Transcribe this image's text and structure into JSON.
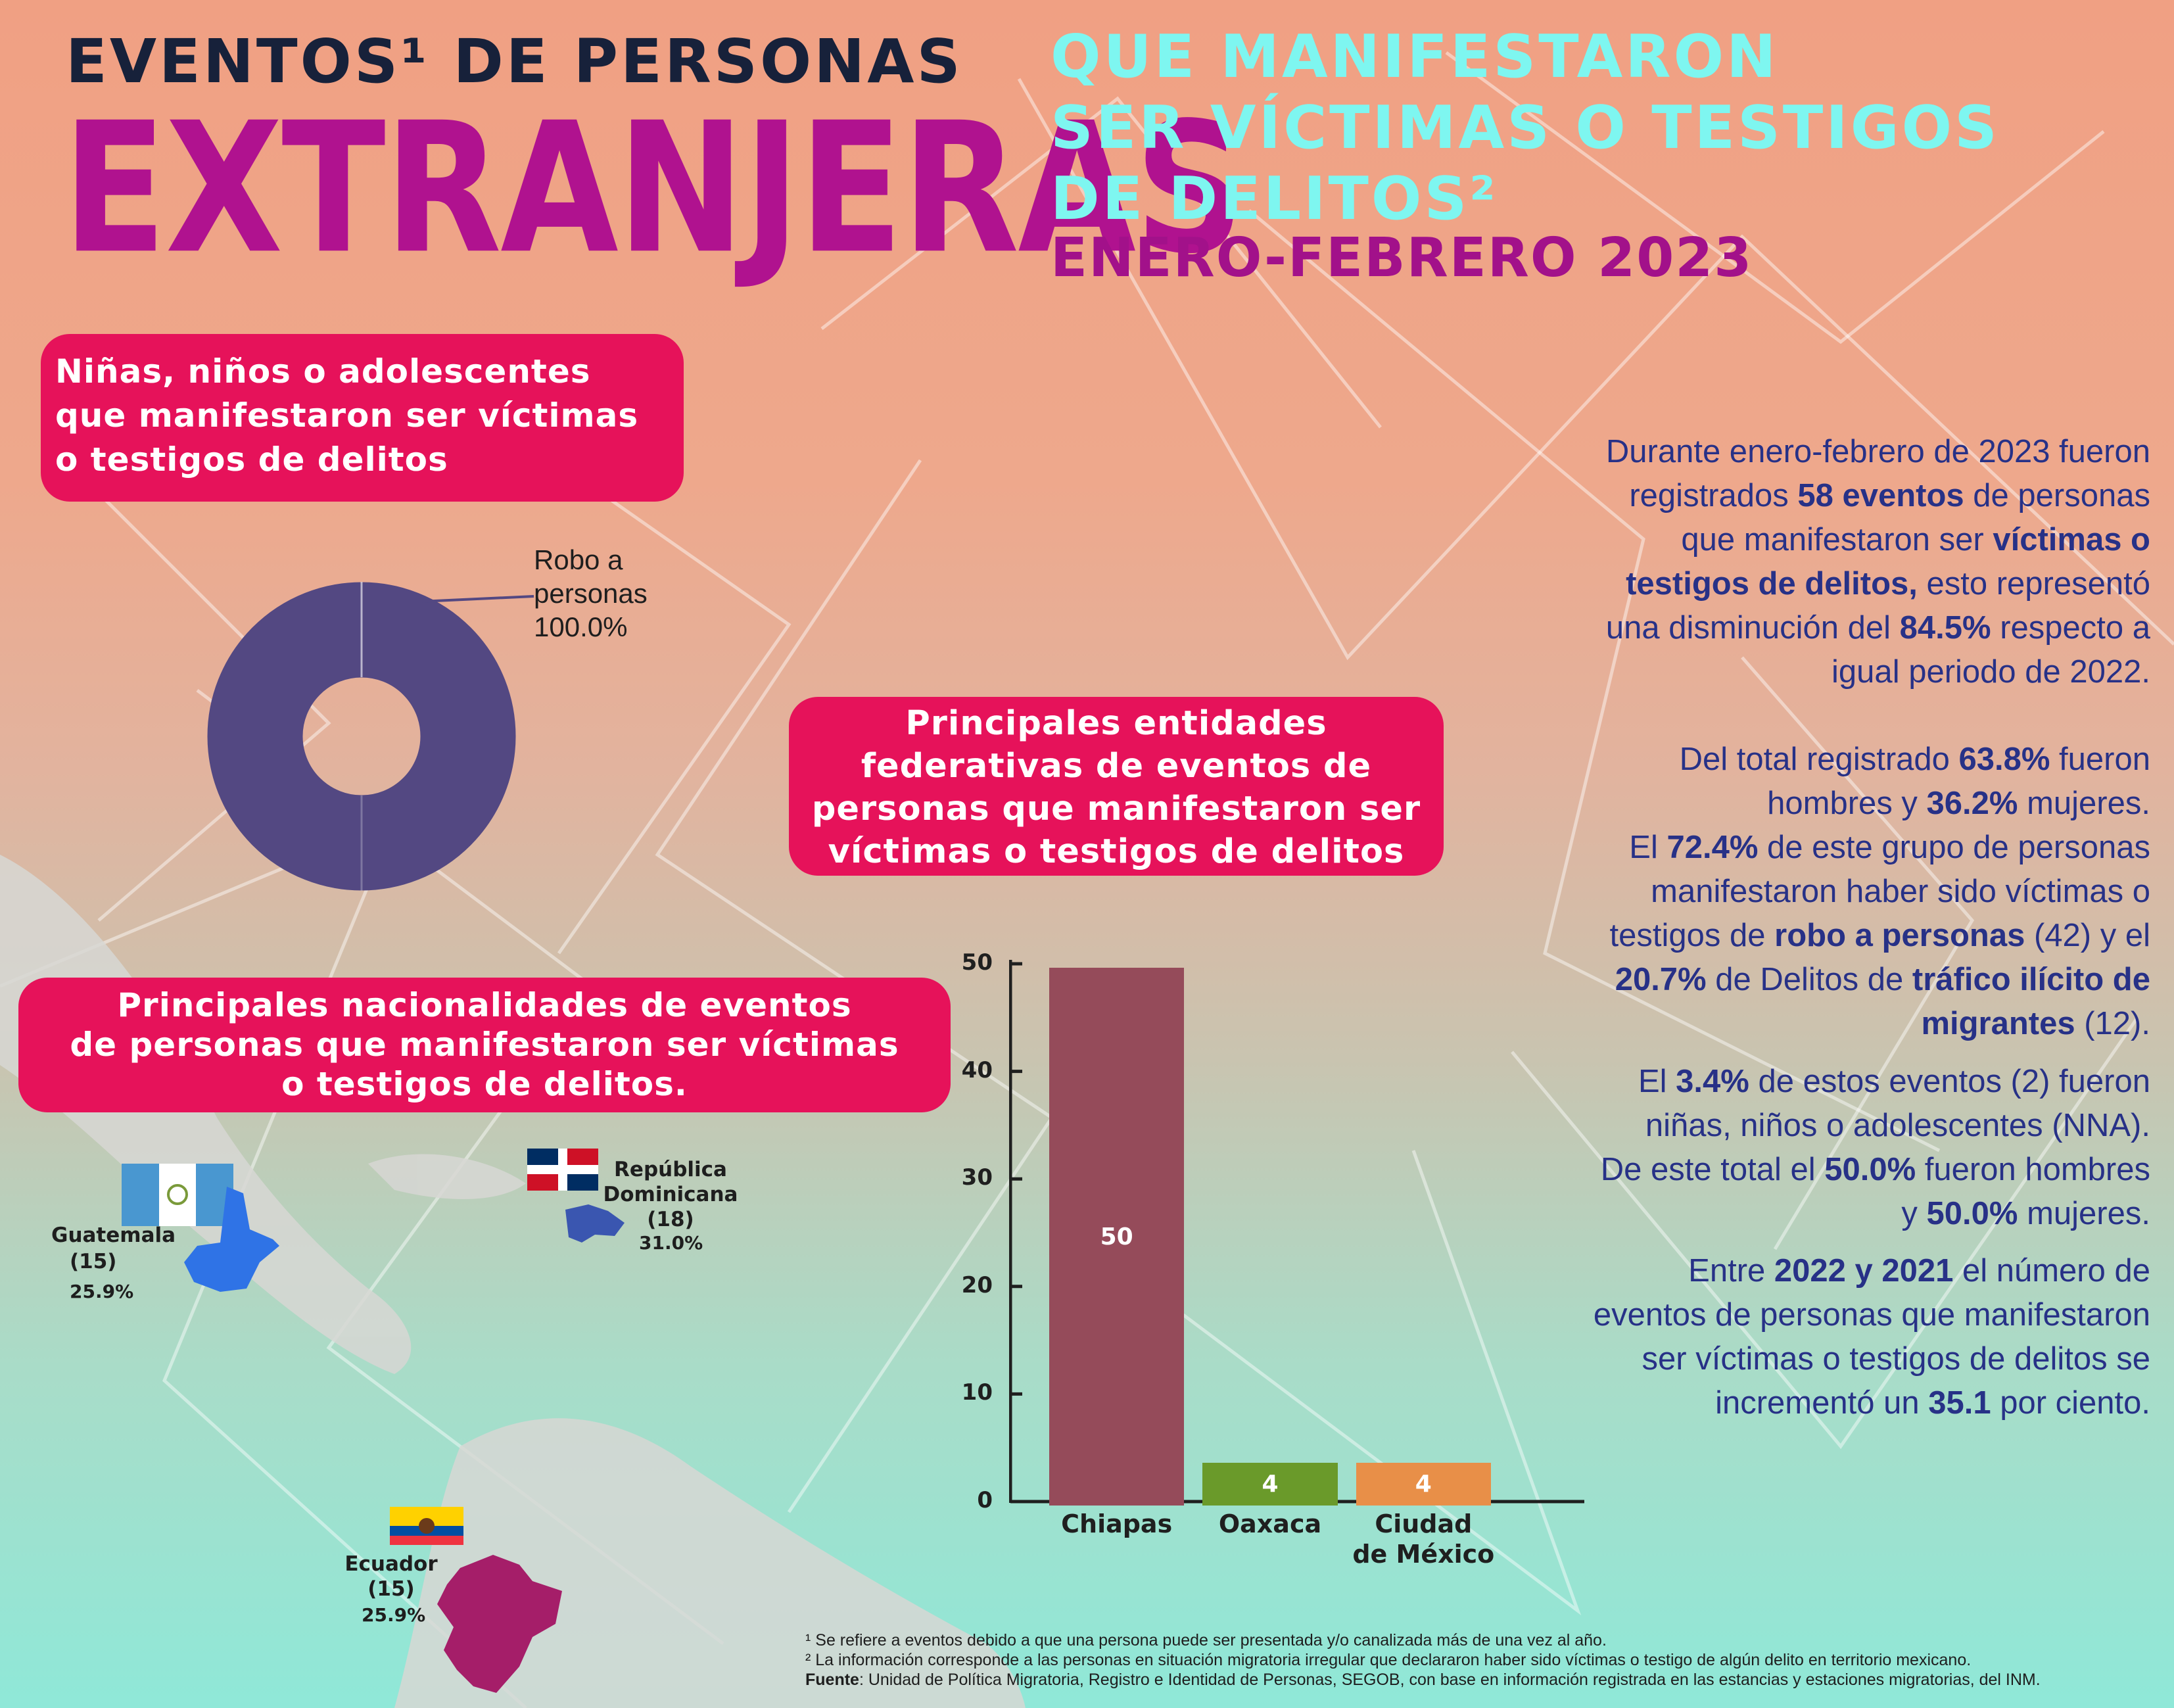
{
  "header": {
    "line1": "EVENTOS¹ DE PERSONAS",
    "big": "EXTRANJERAS",
    "sub": [
      "QUE MANIFESTARON",
      "SER VÍCTIMAS O TESTIGOS",
      "DE DELITOS²"
    ],
    "date": "ENERO-FEBRERO 2023"
  },
  "nna_box": {
    "lines": [
      "Niñas, niños o adolescentes",
      "que manifestaron ser víctimas",
      "o testigos de delitos"
    ]
  },
  "donut": {
    "label_lines": [
      "Robo a",
      "personas",
      "100.0%"
    ],
    "color": "#534882"
  },
  "states_box": {
    "lines": [
      "Principales entidades",
      "federativas de eventos de",
      "personas que manifestaron ser",
      "víctimas o testigos de delitos"
    ]
  },
  "nat_box": {
    "lines": [
      "Principales nacionalidades de eventos",
      "de personas que manifestaron ser víctimas",
      "o testigos de delitos."
    ]
  },
  "nationalities": [
    {
      "name": "Guatemala",
      "count": "(15)",
      "pct": "25.9%",
      "color": "#2f73e6"
    },
    {
      "name_lines": [
        "República",
        "Dominicana",
        "(18)"
      ],
      "pct": "31.0%",
      "color": "#3a56b0"
    },
    {
      "name_lines": [
        "Ecuador",
        "(15)"
      ],
      "pct": "25.9%",
      "color": "#a51e69"
    }
  ],
  "chart_data": {
    "type": "bar",
    "categories": [
      "Chiapas",
      "Oaxaca",
      "Ciudad de México"
    ],
    "category_lines": [
      [
        "Chiapas"
      ],
      [
        "Oaxaca"
      ],
      [
        "Ciudad",
        "de México"
      ]
    ],
    "values": [
      50,
      4,
      4
    ],
    "data_labels": [
      "50",
      "4",
      "4"
    ],
    "colors": [
      "#954b5a",
      "#6a9a2a",
      "#e88f48"
    ],
    "yticks": [
      "0",
      "10",
      "20",
      "30",
      "40",
      "50"
    ],
    "ylim": [
      0,
      50
    ],
    "grid": false
  },
  "summary": [
    [
      [
        "Durante enero-febrero de 2023  fueron",
        false
      ]
    ],
    [
      [
        "registrados ",
        false
      ],
      [
        "58 eventos",
        true
      ],
      [
        " de personas",
        false
      ]
    ],
    [
      [
        "que manifestaron ser ",
        false
      ],
      [
        "víctimas o",
        true
      ]
    ],
    [
      [
        "testigos de delitos,",
        true
      ],
      [
        " esto representó",
        false
      ]
    ],
    [
      [
        "una disminución  del ",
        false
      ],
      [
        "84.5%",
        true
      ],
      [
        " respecto a",
        false
      ]
    ],
    [
      [
        "igual periodo de 2022.",
        false
      ]
    ]
  ],
  "sex": [
    [
      [
        "Del total registrado ",
        false
      ],
      [
        "63.8%",
        true
      ],
      [
        " fueron",
        false
      ]
    ],
    [
      [
        "hombres y ",
        false
      ],
      [
        "36.2%",
        true
      ],
      [
        " mujeres.",
        false
      ]
    ],
    [
      [
        "El ",
        false
      ],
      [
        "72.4%",
        true
      ],
      [
        " de este grupo de personas",
        false
      ]
    ],
    [
      [
        "manifestaron haber sido víctimas o",
        false
      ]
    ],
    [
      [
        "testigos de ",
        false
      ],
      [
        "robo a personas",
        true
      ],
      [
        " (42) y el",
        false
      ]
    ],
    [
      [
        "20.7%",
        true
      ],
      [
        " de Delitos de ",
        false
      ],
      [
        "tráfico ilícito de",
        true
      ]
    ],
    [
      [
        "migrantes",
        true
      ],
      [
        " (12).",
        false
      ]
    ]
  ],
  "nna_text": [
    [
      [
        "El ",
        false
      ],
      [
        "3.4%",
        true
      ],
      [
        " de estos eventos (2) fueron",
        false
      ]
    ],
    [
      [
        "niñas, niños o adolescentes (NNA).",
        false
      ]
    ],
    [
      [
        "De este total el ",
        false
      ],
      [
        "50.0%",
        true
      ],
      [
        " fueron hombres",
        false
      ]
    ],
    [
      [
        "y ",
        false
      ],
      [
        "50.0%",
        true
      ],
      [
        " mujeres.",
        false
      ]
    ]
  ],
  "trend": [
    [
      [
        "Entre ",
        false
      ],
      [
        "2022 y 2021",
        true
      ],
      [
        " el número de",
        false
      ]
    ],
    [
      [
        "eventos de personas que manifestaron",
        false
      ]
    ],
    [
      [
        "ser víctimas o testigos de delitos se",
        false
      ]
    ],
    [
      [
        "incrementó un ",
        false
      ],
      [
        "35.1",
        true
      ],
      [
        " por ciento.",
        false
      ]
    ]
  ],
  "footnotes": {
    "n1": "¹ Se refiere a eventos debido a que una persona puede ser presentada y/o canalizada más de una vez al año.",
    "n2": "² La información corresponde a las personas en situación migratoria irregular que declararon haber sido víctimas o testigo de algún delito en territorio mexicano.",
    "source_label": "Fuente",
    "source_text": ": Unidad de Política Migratoria, Registro e Identidad de Personas, SEGOB, con base en información registrada en las estancias y estaciones migratorias, del INM."
  },
  "colors": {
    "pink": "#e6125a",
    "magenta": "#b0128f",
    "cyan": "#7ef6f0",
    "navy": "#273187"
  }
}
